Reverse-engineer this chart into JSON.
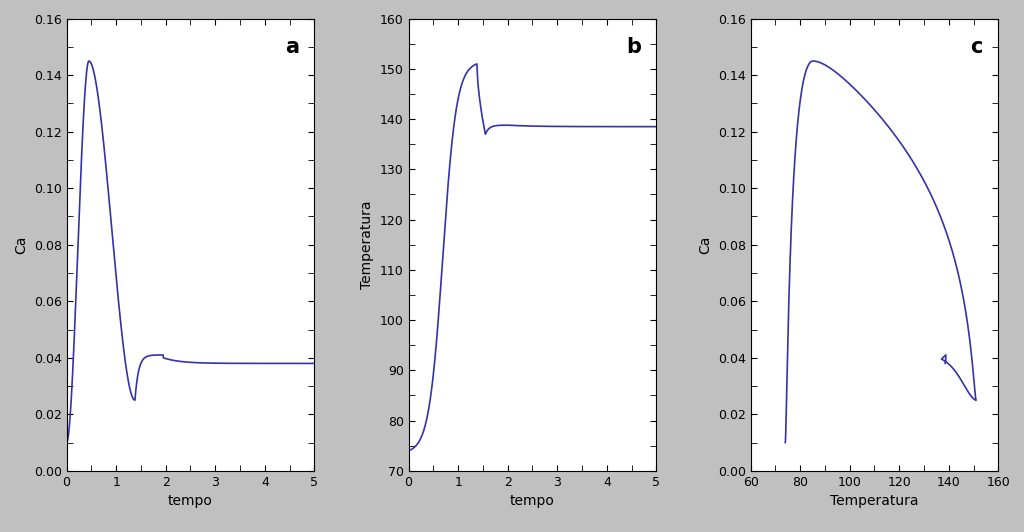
{
  "background_color": "#c0c0c0",
  "line_color": "#3333aa",
  "line_width": 1.2,
  "subplot_a": {
    "label": "a",
    "xlabel": "tempo",
    "ylabel": "Ca",
    "xlim": [
      0,
      5
    ],
    "ylim": [
      0,
      0.16
    ],
    "yticks": [
      0,
      0.02,
      0.04,
      0.06,
      0.08,
      0.1,
      0.12,
      0.14,
      0.16
    ],
    "xticks": [
      0,
      1,
      2,
      3,
      4,
      5
    ]
  },
  "subplot_b": {
    "label": "b",
    "xlabel": "tempo",
    "ylabel": "Temperatura",
    "xlim": [
      0,
      5
    ],
    "ylim": [
      70,
      160
    ],
    "yticks": [
      70,
      80,
      90,
      100,
      110,
      120,
      130,
      140,
      150,
      160
    ],
    "xticks": [
      0,
      1,
      2,
      3,
      4,
      5
    ]
  },
  "subplot_c": {
    "label": "c",
    "xlabel": "Temperatura",
    "ylabel": "Ca",
    "xlim": [
      60,
      160
    ],
    "ylim": [
      0,
      0.16
    ],
    "yticks": [
      0,
      0.02,
      0.04,
      0.06,
      0.08,
      0.1,
      0.12,
      0.14,
      0.16
    ],
    "xticks": [
      60,
      80,
      100,
      120,
      140,
      160
    ]
  }
}
